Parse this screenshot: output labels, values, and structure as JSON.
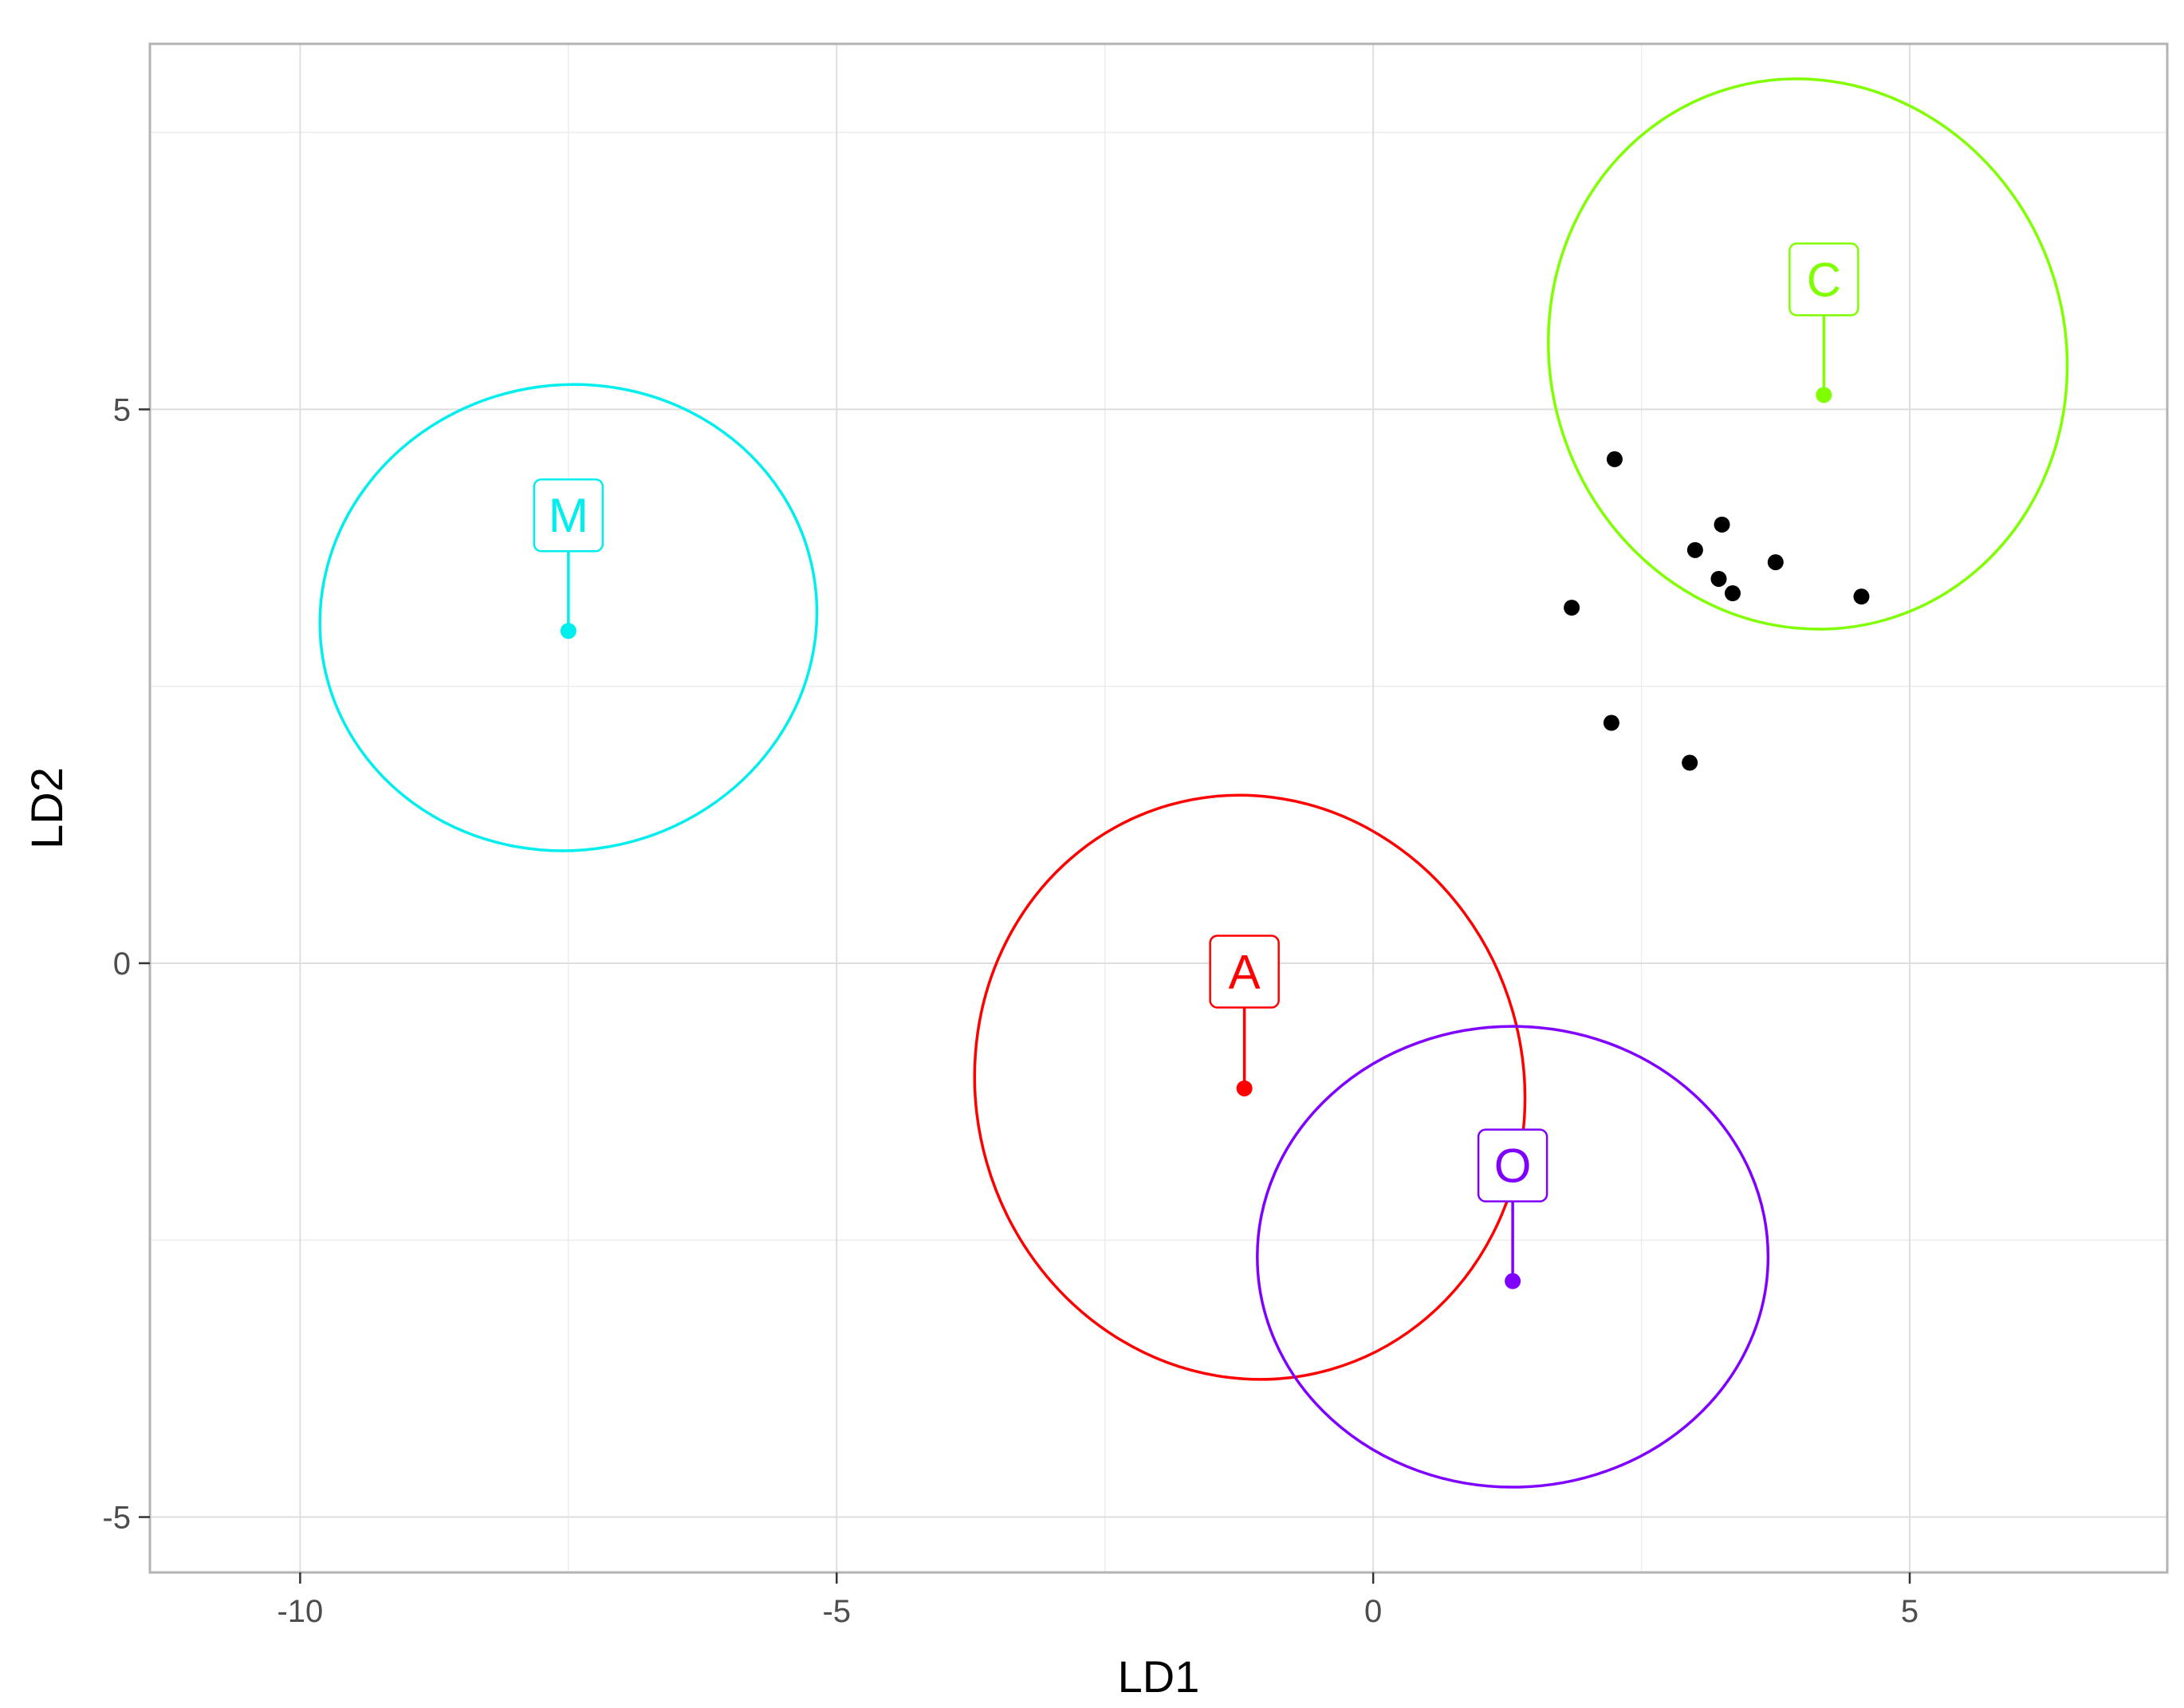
{
  "chart_data": {
    "type": "scatter",
    "title": "",
    "xlabel": "LD1",
    "ylabel": "LD2",
    "xlim": [
      -11.4,
      7.4
    ],
    "ylim": [
      -5.5,
      8.3
    ],
    "x_ticks": [
      -10,
      -5,
      0,
      5
    ],
    "y_ticks": [
      -5,
      0,
      5
    ],
    "x_tick_labels": [
      "-10",
      "-5",
      "0",
      "5"
    ],
    "y_tick_labels": [
      "-5",
      "0",
      "5"
    ],
    "grid": true,
    "legend": "none",
    "groups": [
      {
        "label": "A",
        "color": "#ff0000",
        "centroid": [
          -1.2,
          -1.13
        ],
        "label_anchor": [
          -1.2,
          -0.4
        ],
        "ellipse": {
          "center": [
            -1.15,
            -1.12
          ],
          "rx": 2.55,
          "ry": 2.65,
          "angle_deg": -16
        }
      },
      {
        "label": "C",
        "color": "#7fff00",
        "centroid": [
          4.2,
          5.13
        ],
        "label_anchor": [
          4.2,
          5.85
        ],
        "ellipse": {
          "center": [
            4.05,
            5.5
          ],
          "rx": 2.4,
          "ry": 2.5,
          "angle_deg": -18
        }
      },
      {
        "label": "M",
        "color": "#00eeee",
        "centroid": [
          -7.5,
          3.0
        ],
        "label_anchor": [
          -7.5,
          3.72
        ],
        "ellipse": {
          "center": [
            -7.5,
            3.12
          ],
          "rx": 2.32,
          "ry": 2.1,
          "angle_deg": -10
        }
      },
      {
        "label": "O",
        "color": "#8000ff",
        "centroid": [
          1.3,
          -2.87
        ],
        "label_anchor": [
          1.3,
          -2.15
        ],
        "ellipse": {
          "center": [
            1.3,
            -2.65
          ],
          "rx": 2.38,
          "ry": 2.08,
          "angle_deg": 0
        }
      }
    ],
    "points": {
      "color": "#000000",
      "x": [
        2.25,
        1.85,
        3.0,
        3.25,
        3.75,
        3.22,
        3.35,
        4.55,
        2.22,
        2.95
      ],
      "y": [
        4.55,
        3.21,
        3.73,
        3.96,
        3.62,
        3.47,
        3.34,
        3.31,
        2.17,
        1.81
      ]
    }
  }
}
